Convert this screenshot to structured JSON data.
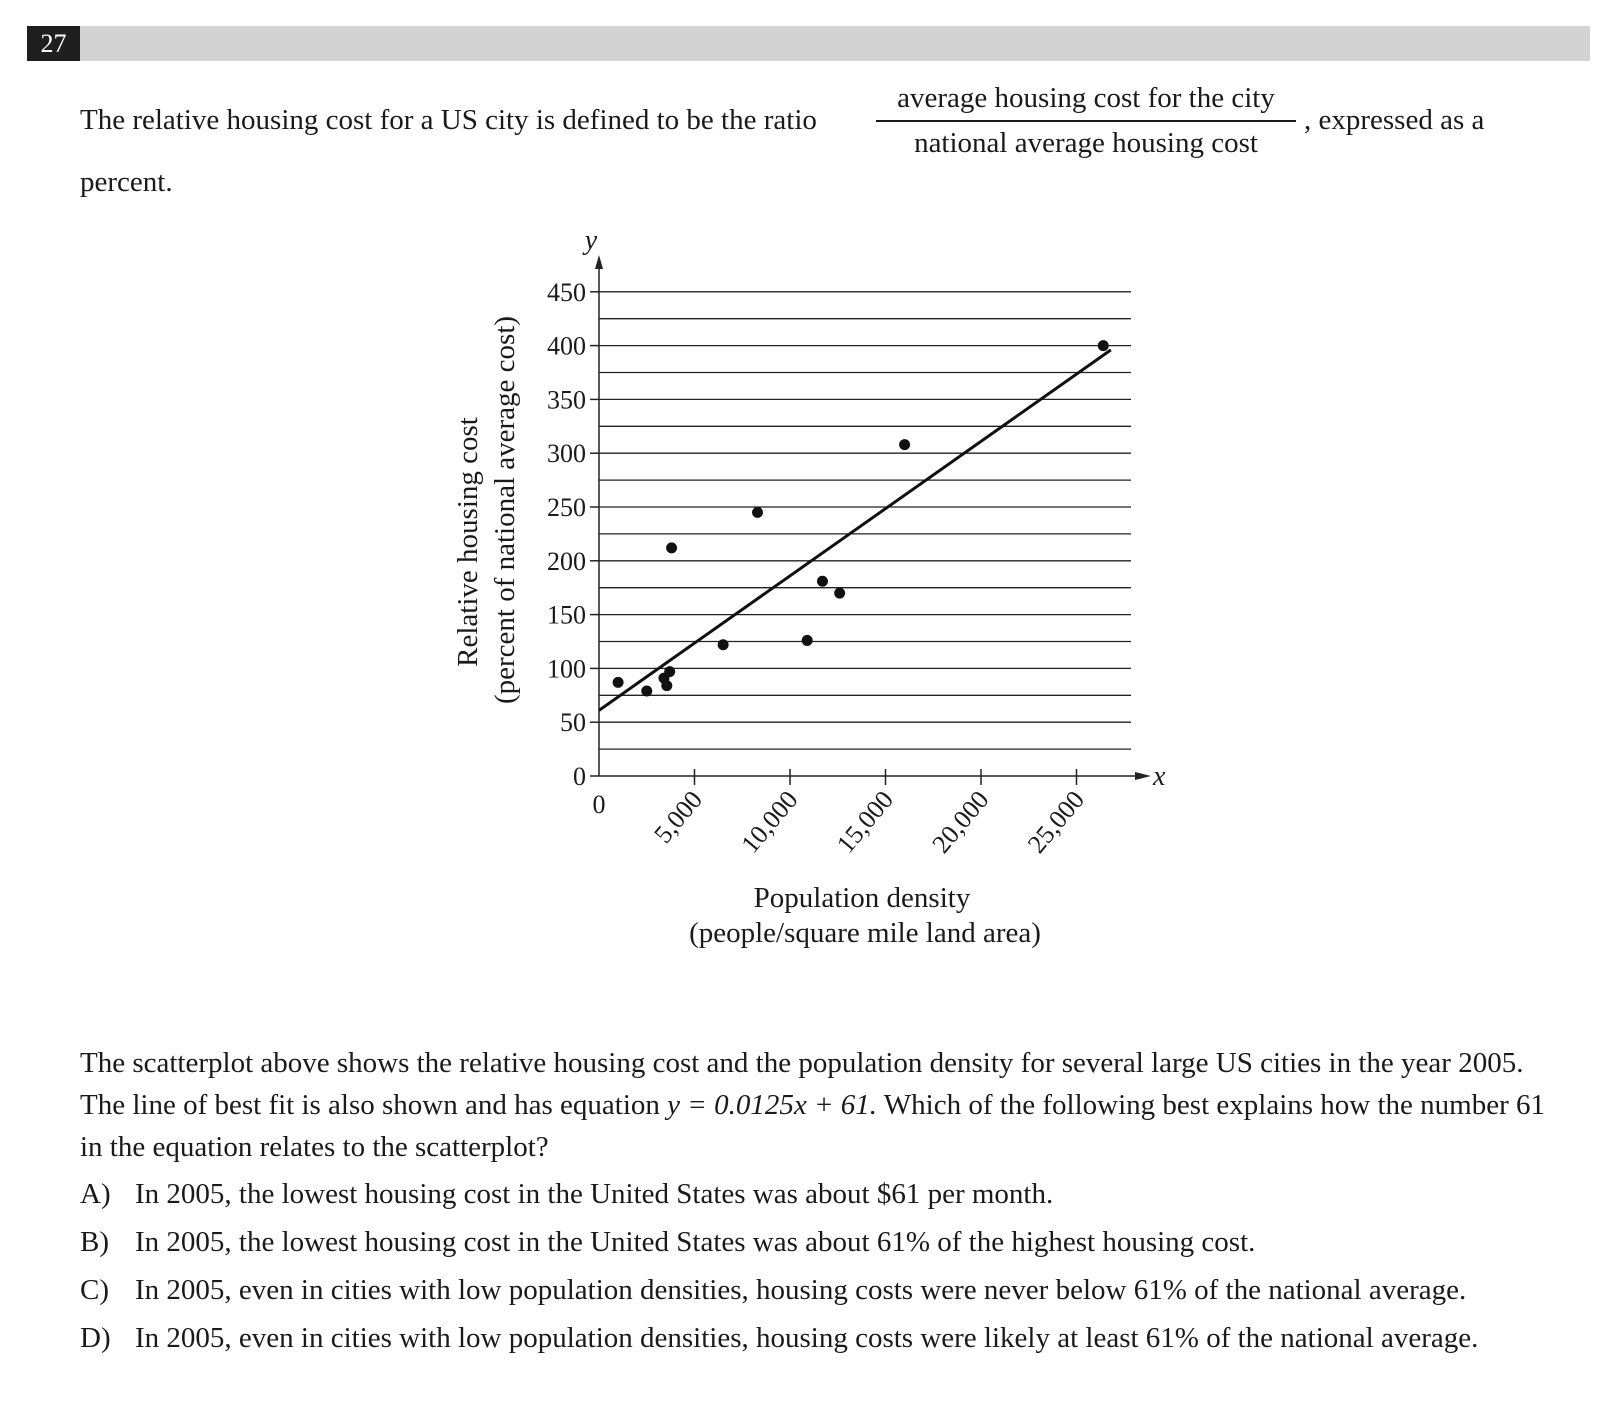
{
  "question": {
    "number": "27",
    "intro_before": "The relative housing cost for a US city is defined to be the ratio",
    "fraction_numerator": "average housing cost for the city",
    "fraction_denominator": "national average housing cost",
    "intro_after": ", expressed as a",
    "intro_end": "percent.",
    "paragraph_part1": "The scatterplot above shows the relative housing cost and the population density for several large US cities in the year 2005. The line of best fit is also shown and has equation",
    "equation": "y = 0.0125x + 61.",
    "paragraph_part2": "Which of the following best explains how the number 61 in the equation relates to the scatterplot?",
    "choices": [
      {
        "letter": "A)",
        "text": "In 2005, the lowest housing cost in the United States was about $61 per month."
      },
      {
        "letter": "B)",
        "text": "In 2005, the lowest housing cost in the United States was about 61% of the highest housing cost."
      },
      {
        "letter": "C)",
        "text": "In 2005, even in cities with low population densities, housing costs were never below 61% of the national average."
      },
      {
        "letter": "D)",
        "text": "In 2005, even in cities with low population densities, housing costs were likely at least 61% of the national average."
      }
    ]
  },
  "chart_data": {
    "type": "scatter",
    "title": "",
    "xlabel_line1": "Population density",
    "xlabel_line2": "(people/square mile land area)",
    "ylabel_line1": "Relative housing cost",
    "ylabel_line2": "(percent of national average cost)",
    "x_axis_symbol": "x",
    "y_axis_symbol": "y",
    "xlim": [
      0,
      28000
    ],
    "ylim": [
      0,
      450
    ],
    "x_ticks": [
      {
        "value": 0,
        "label": "0"
      },
      {
        "value": 5000,
        "label": "5,000"
      },
      {
        "value": 10000,
        "label": "10,000"
      },
      {
        "value": 15000,
        "label": "15,000"
      },
      {
        "value": 20000,
        "label": "20,000"
      },
      {
        "value": 25000,
        "label": "25,000"
      }
    ],
    "y_ticks": [
      {
        "value": 0,
        "label": "0"
      },
      {
        "value": 50,
        "label": "50"
      },
      {
        "value": 100,
        "label": "100"
      },
      {
        "value": 150,
        "label": "150"
      },
      {
        "value": 200,
        "label": "200"
      },
      {
        "value": 250,
        "label": "250"
      },
      {
        "value": 300,
        "label": "300"
      },
      {
        "value": 350,
        "label": "350"
      },
      {
        "value": 400,
        "label": "400"
      },
      {
        "value": 450,
        "label": "450"
      }
    ],
    "y_gridline_step": 25,
    "grid": "horizontal",
    "points": [
      {
        "x": 1000,
        "y": 87
      },
      {
        "x": 2500,
        "y": 79
      },
      {
        "x": 3400,
        "y": 91
      },
      {
        "x": 3550,
        "y": 84
      },
      {
        "x": 3700,
        "y": 97
      },
      {
        "x": 3800,
        "y": 212
      },
      {
        "x": 6500,
        "y": 122
      },
      {
        "x": 8300,
        "y": 245
      },
      {
        "x": 10900,
        "y": 126
      },
      {
        "x": 11700,
        "y": 181
      },
      {
        "x": 12600,
        "y": 170
      },
      {
        "x": 16000,
        "y": 308
      },
      {
        "x": 26400,
        "y": 400
      }
    ],
    "best_fit": {
      "slope": 0.0125,
      "intercept": 61,
      "x_start": 0,
      "x_end": 26800
    }
  }
}
